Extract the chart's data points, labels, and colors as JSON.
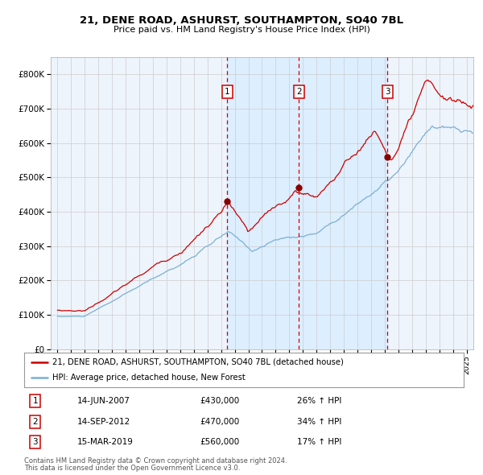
{
  "title": "21, DENE ROAD, ASHURST, SOUTHAMPTON, SO40 7BL",
  "subtitle": "Price paid vs. HM Land Registry's House Price Index (HPI)",
  "legend_line1": "21, DENE ROAD, ASHURST, SOUTHAMPTON, SO40 7BL (detached house)",
  "legend_line2": "HPI: Average price, detached house, New Forest",
  "footer1": "Contains HM Land Registry data © Crown copyright and database right 2024.",
  "footer2": "This data is licensed under the Open Government Licence v3.0.",
  "transactions": [
    {
      "num": 1,
      "date": "14-JUN-2007",
      "price": "£430,000",
      "pct": "26%",
      "dir": "↑",
      "ref": "HPI",
      "x_year": 2007.45
    },
    {
      "num": 2,
      "date": "14-SEP-2012",
      "price": "£470,000",
      "pct": "34%",
      "dir": "↑",
      "ref": "HPI",
      "x_year": 2012.71
    },
    {
      "num": 3,
      "date": "15-MAR-2019",
      "price": "£560,000",
      "pct": "17%",
      "dir": "↑",
      "ref": "HPI",
      "x_year": 2019.21
    }
  ],
  "sale_values": [
    430000,
    470000,
    560000
  ],
  "xlim": [
    1994.5,
    2025.5
  ],
  "ylim": [
    0,
    850000
  ],
  "yticks": [
    0,
    100000,
    200000,
    300000,
    400000,
    500000,
    600000,
    700000,
    800000
  ],
  "ytick_labels": [
    "£0",
    "£100K",
    "£200K",
    "£300K",
    "£400K",
    "£500K",
    "£600K",
    "£700K",
    "£800K"
  ],
  "red_line_color": "#cc0000",
  "blue_line_color": "#7ab0d4",
  "shade_color": "#ddeeff",
  "dot_color": "#880000",
  "vline_color": "#cc0000",
  "grid_color": "#cccccc",
  "background_color": "#ffffff",
  "plot_bg_color": "#eef4fb"
}
